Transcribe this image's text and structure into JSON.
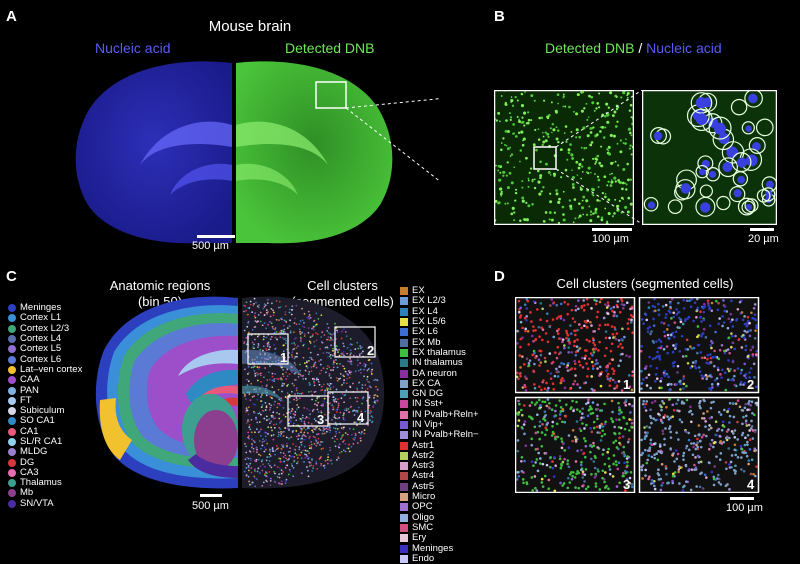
{
  "panels": {
    "A": "A",
    "B": "B",
    "C": "C",
    "D": "D"
  },
  "panelA": {
    "title": "Mouse brain",
    "left_label": "Nucleic acid",
    "right_label": "Detected DNB",
    "scale": "500 µm"
  },
  "panelB": {
    "title_part1": "Detected DNB",
    "title_sep": " / ",
    "title_part2": "Nucleic acid",
    "scale_left": "100 µm",
    "scale_right": "20 µm"
  },
  "panelC": {
    "left_title_line1": "Anatomic regions",
    "left_title_line2": "(bin 50)",
    "right_title_line1": "Cell clusters",
    "right_title_line2": "(segmented cells)",
    "scale": "500 µm",
    "inset_labels": [
      "1",
      "2",
      "3",
      "4"
    ],
    "regions": [
      {
        "label": "Meninges",
        "color": "#2b3fbf"
      },
      {
        "label": "Cortex L1",
        "color": "#3a8fd9"
      },
      {
        "label": "Cortex L2/3",
        "color": "#3fa77a"
      },
      {
        "label": "Cortex L4",
        "color": "#5b6fb0"
      },
      {
        "label": "Cortex L5",
        "color": "#8f6fd0"
      },
      {
        "label": "Cortex L6",
        "color": "#5a7ad6"
      },
      {
        "label": "Lat–ven cortex",
        "color": "#f2c12e"
      },
      {
        "label": "CAA",
        "color": "#9c4fc9"
      },
      {
        "label": "PAN",
        "color": "#7fb0e0"
      },
      {
        "label": "FT",
        "color": "#a9c8ef"
      },
      {
        "label": "Subiculum",
        "color": "#d6d6e8"
      },
      {
        "label": "SO CA1",
        "color": "#2f8ac4"
      },
      {
        "label": "CA1",
        "color": "#e85a7a"
      },
      {
        "label": "SL/R CA1",
        "color": "#8fd0ea"
      },
      {
        "label": "MLDG",
        "color": "#9a7fcf"
      },
      {
        "label": "DG",
        "color": "#d8383c"
      },
      {
        "label": "CA3",
        "color": "#e56fb0"
      },
      {
        "label": "Thalamus",
        "color": "#3d9f8f"
      },
      {
        "label": "Mb",
        "color": "#8c3f8f"
      },
      {
        "label": "SN/VTA",
        "color": "#4b2ba0"
      }
    ],
    "clusters": [
      {
        "label": "EX",
        "color": "#c77d2f"
      },
      {
        "label": "EX L2/3",
        "color": "#6f9ad8"
      },
      {
        "label": "EX L4",
        "color": "#2f7fb8"
      },
      {
        "label": "EX L5/6",
        "color": "#e8e04a"
      },
      {
        "label": "EX L6",
        "color": "#3b6fd4"
      },
      {
        "label": "EX Mb",
        "color": "#4e6fa0"
      },
      {
        "label": "EX thalamus",
        "color": "#3fbf3f"
      },
      {
        "label": "IN thalamus",
        "color": "#2a7a8a"
      },
      {
        "label": "DA neuron",
        "color": "#8a2f9f"
      },
      {
        "label": "EX CA",
        "color": "#7fa0c8"
      },
      {
        "label": "GN DG",
        "color": "#4ea0b8"
      },
      {
        "label": "IN Sst+",
        "color": "#c8489f"
      },
      {
        "label": "IN Pvalb+Reln+",
        "color": "#e070a8"
      },
      {
        "label": "IN Vip+",
        "color": "#7a5ad0"
      },
      {
        "label": "IN Pvalb+Reln−",
        "color": "#9f8fd8"
      },
      {
        "label": "Astr1",
        "color": "#e03030"
      },
      {
        "label": "Astr2",
        "color": "#b0d060"
      },
      {
        "label": "Astr3",
        "color": "#d8a0c8"
      },
      {
        "label": "Astr4",
        "color": "#b04848"
      },
      {
        "label": "Astr5",
        "color": "#6f3f7f"
      },
      {
        "label": "Micro",
        "color": "#d6a080"
      },
      {
        "label": "OPC",
        "color": "#a070d0"
      },
      {
        "label": "Oligo",
        "color": "#90b0e0"
      },
      {
        "label": "SMC",
        "color": "#d05080"
      },
      {
        "label": "Ery",
        "color": "#e8c8d8"
      },
      {
        "label": "Meninges",
        "color": "#3a2fbf"
      },
      {
        "label": "Endo",
        "color": "#c8c8ff"
      }
    ]
  },
  "panelD": {
    "title": "Cell clusters (segmented cells)",
    "tile_labels": [
      "1",
      "2",
      "3",
      "4"
    ],
    "scale": "100 µm"
  },
  "colors": {
    "nucleic": "#4b4df0",
    "dnb": "#5fe04a",
    "background": "#000000"
  }
}
